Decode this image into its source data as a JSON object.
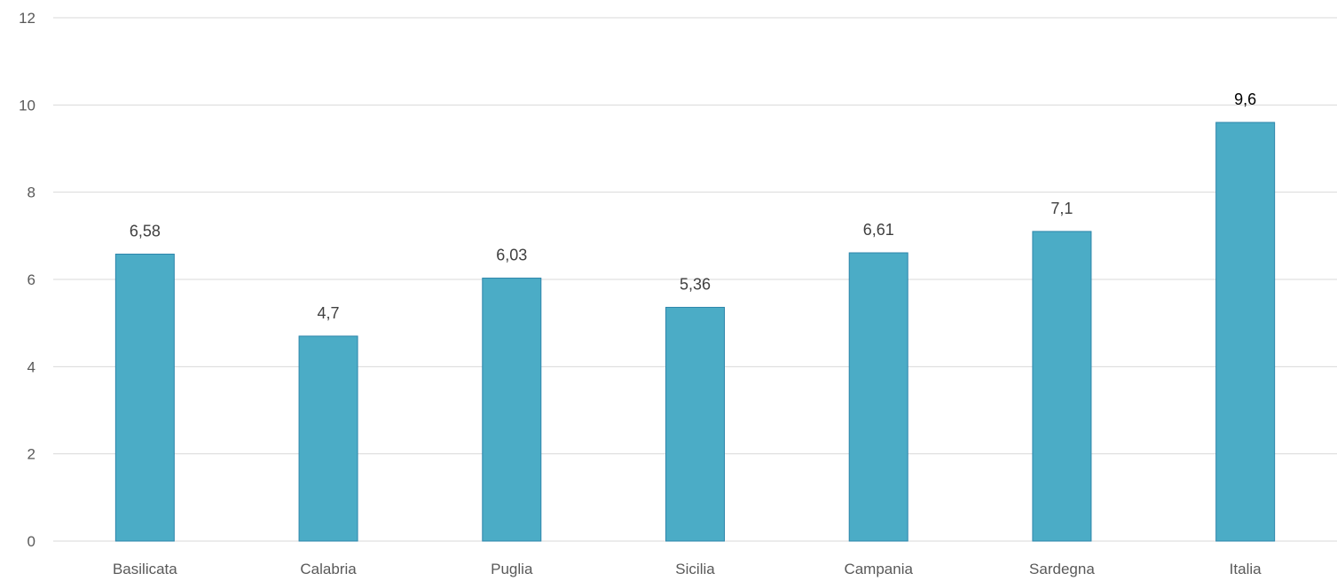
{
  "chart_data": {
    "type": "bar",
    "categories": [
      "Basilicata",
      "Calabria",
      "Puglia",
      "Sicilia",
      "Campania",
      "Sardegna",
      "Italia"
    ],
    "values": [
      6.58,
      4.7,
      6.03,
      5.36,
      6.61,
      7.1,
      9.6
    ],
    "value_labels": [
      "6,58",
      "4,7",
      "6,03",
      "5,36",
      "6,61",
      "7,1",
      "9,6"
    ],
    "ylim": [
      0,
      12
    ],
    "yticks": [
      0,
      2,
      4,
      6,
      8,
      10,
      12
    ],
    "title": "",
    "xlabel": "",
    "ylabel": "",
    "grid": true,
    "legend": "none",
    "bar_color": "#4bacc6"
  }
}
